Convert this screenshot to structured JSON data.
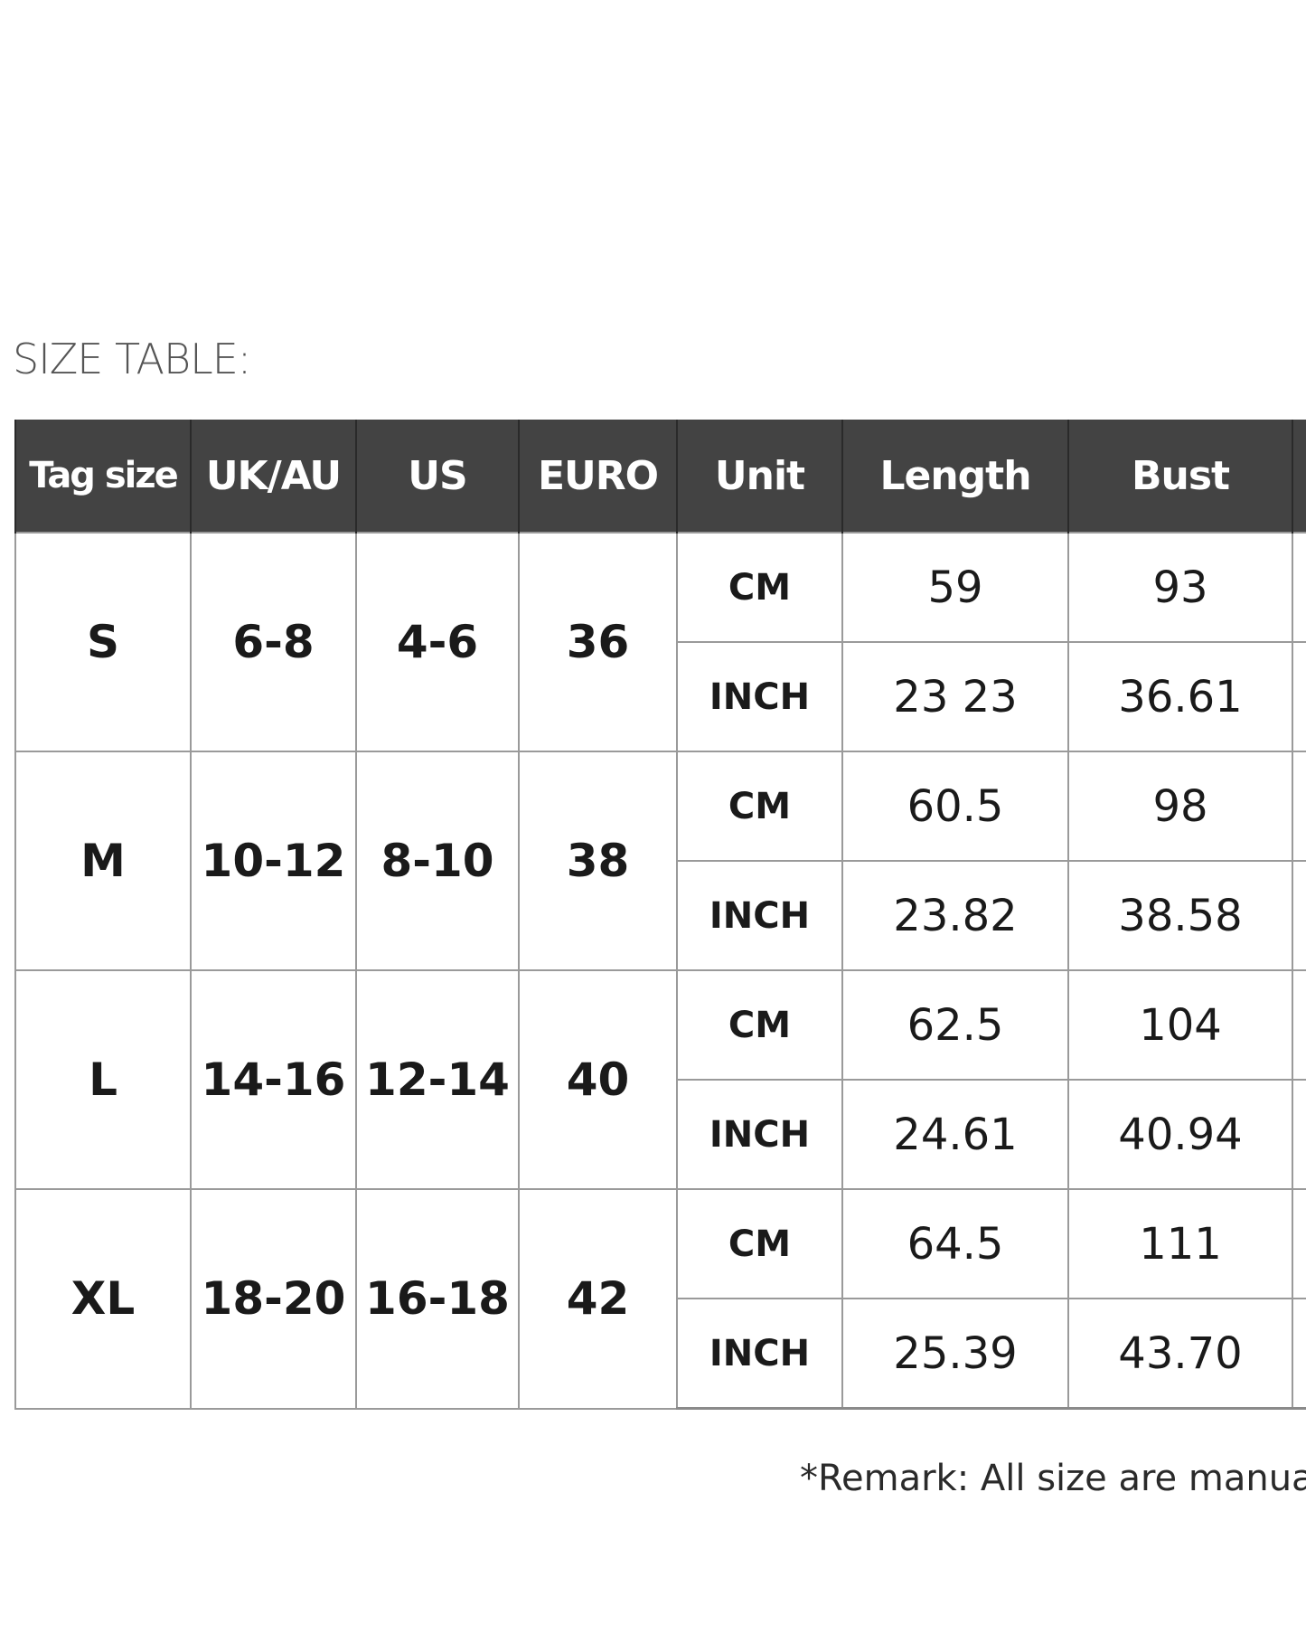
{
  "title": "SIZE TABLE:",
  "table": {
    "headers": [
      "Tag size",
      "UK/AU",
      "US",
      "EURO",
      "Unit",
      "Length",
      "Bust",
      ""
    ],
    "rows": [
      {
        "tag": "S",
        "ukau": "6-8",
        "us": "4-6",
        "euro": "36",
        "cm": {
          "unit": "CM",
          "length": "59",
          "bust": "93"
        },
        "inch": {
          "unit": "INCH",
          "length": "23 23",
          "bust": "36.61"
        }
      },
      {
        "tag": "M",
        "ukau": "10-12",
        "us": "8-10",
        "euro": "38",
        "cm": {
          "unit": "CM",
          "length": "60.5",
          "bust": "98"
        },
        "inch": {
          "unit": "INCH",
          "length": "23.82",
          "bust": "38.58"
        }
      },
      {
        "tag": "L",
        "ukau": "14-16",
        "us": "12-14",
        "euro": "40",
        "cm": {
          "unit": "CM",
          "length": "62.5",
          "bust": "104"
        },
        "inch": {
          "unit": "INCH",
          "length": "24.61",
          "bust": "40.94"
        }
      },
      {
        "tag": "XL",
        "ukau": "18-20",
        "us": "16-18",
        "euro": "42",
        "cm": {
          "unit": "CM",
          "length": "64.5",
          "bust": "111"
        },
        "inch": {
          "unit": "INCH",
          "length": "25.39",
          "bust": "43.70"
        }
      }
    ]
  },
  "remark": "*Remark: All size are manua"
}
